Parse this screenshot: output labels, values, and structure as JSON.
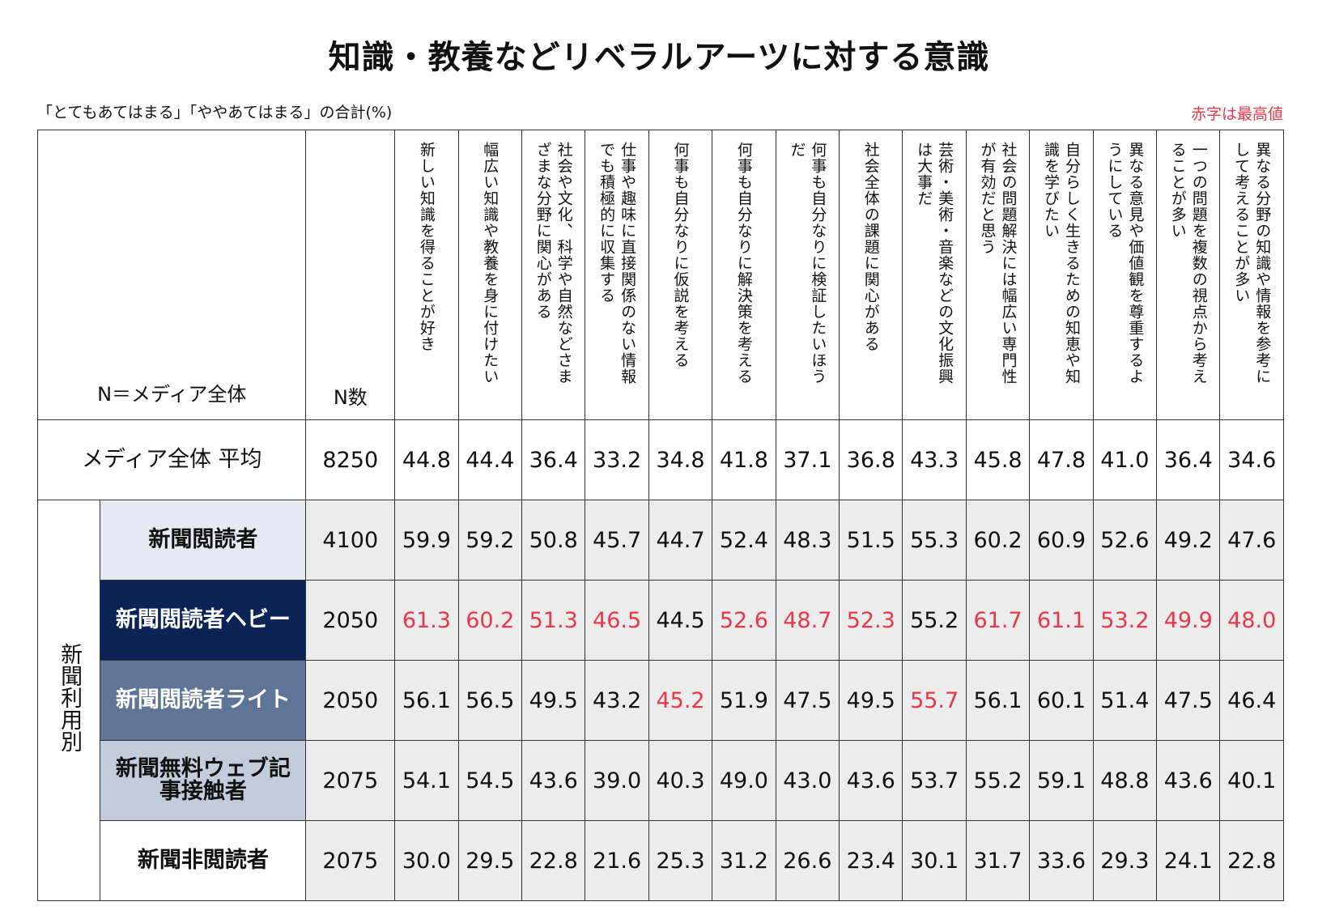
{
  "title": "知識・教養などリベラルアーツに対する意識",
  "subtitle": "「とてもあてはまる」「ややあてはまる」の合計(%)",
  "note": "赤字は最高値",
  "header": {
    "left_label": "N＝メディア全体",
    "n_label": "N数",
    "questions": [
      "新しい知識を得ることが好き",
      "幅広い知識や教養を身に付けたい",
      "社会や文化、科学や自然などさまざまな分野に関心がある",
      "仕事や趣味に直接関係のない情報でも積極的に収集する",
      "何事も自分なりに仮説を考える",
      "何事も自分なりに解決策を考える",
      "何事も自分なりに検証したいほうだ",
      "社会全体の課題に関心がある",
      "芸術・美術・音楽などの文化振興は大事だ",
      "社会の問題解決には幅広い専門性が有効だと思う",
      "自分らしく生きるための知恵や知識を学びたい",
      "異なる意見や価値観を尊重するようにしている",
      "一つの問題を複数の視点から考えることが多い",
      "異なる分野の知識や情報を参考にして考えることが多い"
    ]
  },
  "group_label": "新聞利用別",
  "colors": {
    "highlight": "#e8364a",
    "heavy_bg": "#0c2356",
    "light_bg": "#5f7597"
  },
  "rows": [
    {
      "label": "メディア全体 平均",
      "n": "8250",
      "values": [
        "44.8",
        "44.4",
        "36.4",
        "33.2",
        "34.8",
        "41.8",
        "37.1",
        "36.8",
        "43.3",
        "45.8",
        "47.8",
        "41.0",
        "36.4",
        "34.6"
      ],
      "highlight": []
    },
    {
      "label": "新聞閲読者",
      "n": "4100",
      "values": [
        "59.9",
        "59.2",
        "50.8",
        "45.7",
        "44.7",
        "52.4",
        "48.3",
        "51.5",
        "55.3",
        "60.2",
        "60.9",
        "52.6",
        "49.2",
        "47.6"
      ],
      "highlight": []
    },
    {
      "label": "新聞閲読者ヘビー",
      "n": "2050",
      "values": [
        "61.3",
        "60.2",
        "51.3",
        "46.5",
        "44.5",
        "52.6",
        "48.7",
        "52.3",
        "55.2",
        "61.7",
        "61.1",
        "53.2",
        "49.9",
        "48.0"
      ],
      "highlight": [
        0,
        1,
        2,
        3,
        5,
        6,
        7,
        9,
        10,
        11,
        12,
        13
      ]
    },
    {
      "label": "新聞閲読者ライト",
      "n": "2050",
      "values": [
        "56.1",
        "56.5",
        "49.5",
        "43.2",
        "45.2",
        "51.9",
        "47.5",
        "49.5",
        "55.7",
        "56.1",
        "60.1",
        "51.4",
        "47.5",
        "46.4"
      ],
      "highlight": [
        4,
        8
      ]
    },
    {
      "label": "新聞無料ウェブ記事接触者",
      "n": "2075",
      "values": [
        "54.1",
        "54.5",
        "43.6",
        "39.0",
        "40.3",
        "49.0",
        "43.0",
        "43.6",
        "53.7",
        "55.2",
        "59.1",
        "48.8",
        "43.6",
        "40.1"
      ],
      "highlight": []
    },
    {
      "label": "新聞非閲読者",
      "n": "2075",
      "values": [
        "30.0",
        "29.5",
        "22.8",
        "21.6",
        "25.3",
        "31.2",
        "26.6",
        "23.4",
        "30.1",
        "31.7",
        "33.6",
        "29.3",
        "24.1",
        "22.8"
      ],
      "highlight": []
    }
  ]
}
